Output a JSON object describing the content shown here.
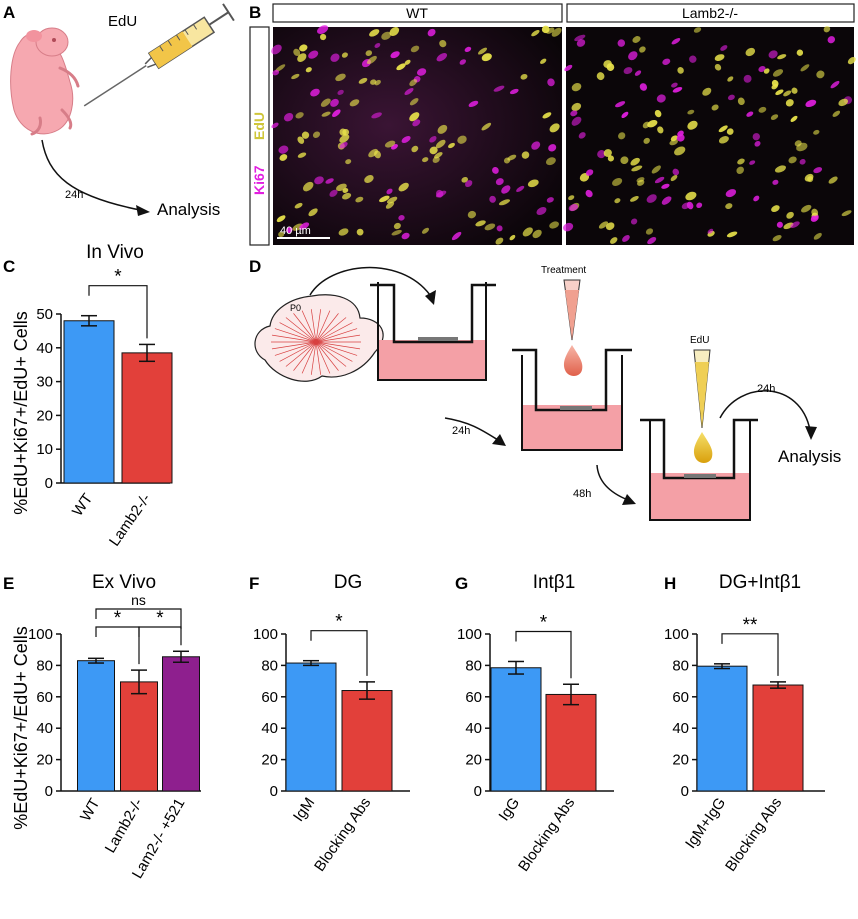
{
  "panels": {
    "A": "A",
    "B": "B",
    "C": "C",
    "D": "D",
    "E": "E",
    "F": "F",
    "G": "G",
    "H": "H"
  },
  "panelA": {
    "syringe_label": "EdU",
    "time": "24h",
    "analysis": "Analysis"
  },
  "panelB": {
    "wt": "WT",
    "mutant": "Lamb2-/-",
    "ch1": "Ki67",
    "ch2": "EdU",
    "scale": "40 µm"
  },
  "panelD": {
    "p0": "P0",
    "treatment": "Treatment",
    "edu": "EdU",
    "t24a": "24h",
    "t48": "48h",
    "t24b": "24h",
    "analysis": "Analysis"
  },
  "colors": {
    "blue": "#3d99f5",
    "red": "#e2403a",
    "purple": "#8e1f8e",
    "magenta": "#e21ee0",
    "yellow": "#e9e34b"
  },
  "chart_data": [
    {
      "id": "C",
      "type": "bar",
      "title": "In Vivo",
      "ylabel": "%EdU+Ki67+/EdU+ Cells",
      "categories": [
        "WT",
        "Lamb2-/-"
      ],
      "values": [
        48,
        38.5
      ],
      "errors": [
        1.5,
        2.5
      ],
      "colors": [
        "blue",
        "red"
      ],
      "ylim": [
        0,
        50
      ],
      "yticks": [
        0,
        10,
        20,
        30,
        40,
        50
      ],
      "sig": [
        {
          "from": 0,
          "to": 1,
          "label": "*"
        }
      ]
    },
    {
      "id": "E",
      "type": "bar",
      "title": "Ex Vivo",
      "ylabel": "%EdU+Ki67+/EdU+ Cells",
      "categories": [
        "WT",
        "Lamb2-/-",
        "Lam2-/- +521"
      ],
      "values": [
        83,
        69.5,
        85.5
      ],
      "errors": [
        1.5,
        7.5,
        3.5
      ],
      "colors": [
        "blue",
        "red",
        "purple"
      ],
      "ylim": [
        0,
        100
      ],
      "yticks": [
        0,
        20,
        40,
        60,
        80,
        100
      ],
      "sig": [
        {
          "from": 0,
          "to": 1,
          "label": "*"
        },
        {
          "from": 1,
          "to": 2,
          "label": "*"
        },
        {
          "from": 0,
          "to": 2,
          "label": "ns"
        }
      ]
    },
    {
      "id": "F",
      "type": "bar",
      "title": "DG",
      "ylabel": "",
      "categories": [
        "IgM",
        "Blocking Abs"
      ],
      "values": [
        81.5,
        64
      ],
      "errors": [
        1.5,
        5.5
      ],
      "colors": [
        "blue",
        "red"
      ],
      "ylim": [
        0,
        100
      ],
      "yticks": [
        0,
        20,
        40,
        60,
        80,
        100
      ],
      "sig": [
        {
          "from": 0,
          "to": 1,
          "label": "*"
        }
      ]
    },
    {
      "id": "G",
      "type": "bar",
      "title": "Intβ1",
      "ylabel": "",
      "categories": [
        "IgG",
        "Blocking Abs"
      ],
      "values": [
        78.5,
        61.5
      ],
      "errors": [
        4,
        6.5
      ],
      "colors": [
        "blue",
        "red"
      ],
      "ylim": [
        0,
        100
      ],
      "yticks": [
        0,
        20,
        40,
        60,
        80,
        100
      ],
      "sig": [
        {
          "from": 0,
          "to": 1,
          "label": "*"
        }
      ]
    },
    {
      "id": "H",
      "type": "bar",
      "title": "DG+Intβ1",
      "ylabel": "",
      "categories": [
        "IgM+IgG",
        "Blocking Abs"
      ],
      "values": [
        79.5,
        67.5
      ],
      "errors": [
        1.5,
        2
      ],
      "colors": [
        "blue",
        "red"
      ],
      "ylim": [
        0,
        100
      ],
      "yticks": [
        0,
        20,
        40,
        60,
        80,
        100
      ],
      "sig": [
        {
          "from": 0,
          "to": 1,
          "label": "**"
        }
      ]
    }
  ]
}
